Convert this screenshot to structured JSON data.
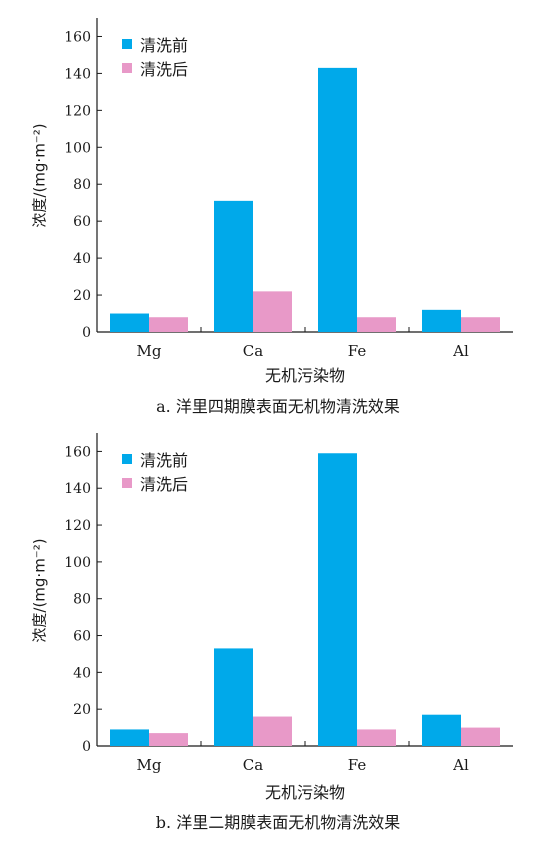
{
  "colors": {
    "before": "#00a9ea",
    "after": "#e899c8",
    "axis": "#1a1a1a"
  },
  "chart_data": [
    {
      "type": "bar",
      "categories": [
        "Mg",
        "Ca",
        "Fe",
        "Al"
      ],
      "series": [
        {
          "name": "清洗前",
          "values": [
            10,
            71,
            143,
            12
          ]
        },
        {
          "name": "清洗后",
          "values": [
            8,
            22,
            8,
            8
          ]
        }
      ],
      "xlabel": "无机污染物",
      "ylabel": "浓度/(mg·m⁻²)",
      "yticks": [
        0,
        20,
        40,
        60,
        80,
        100,
        120,
        140,
        160
      ],
      "ylim": [
        0,
        170
      ],
      "legend": "top-left",
      "caption": "a. 洋里四期膜表面无机物清洗效果"
    },
    {
      "type": "bar",
      "categories": [
        "Mg",
        "Ca",
        "Fe",
        "Al"
      ],
      "series": [
        {
          "name": "清洗前",
          "values": [
            9,
            53,
            159,
            17
          ]
        },
        {
          "name": "清洗后",
          "values": [
            7,
            16,
            9,
            10
          ]
        }
      ],
      "xlabel": "无机污染物",
      "ylabel": "浓度/(mg·m⁻²)",
      "yticks": [
        0,
        20,
        40,
        60,
        80,
        100,
        120,
        140,
        160
      ],
      "ylim": [
        0,
        170
      ],
      "legend": "top-left",
      "caption": "b. 洋里二期膜表面无机物清洗效果"
    }
  ]
}
